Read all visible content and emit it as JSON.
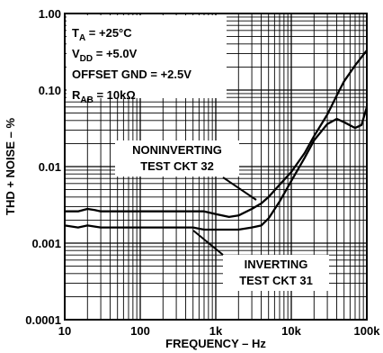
{
  "chart_data": {
    "type": "line",
    "title": "",
    "xlabel": "FREQUENCY – Hz",
    "ylabel": "THD + NOISE – %",
    "xscale": "log",
    "yscale": "log",
    "xlim": [
      10,
      100000
    ],
    "ylim": [
      0.0001,
      1
    ],
    "grid": true,
    "x_ticks": [
      {
        "value": 10,
        "label": "10"
      },
      {
        "value": 100,
        "label": "100"
      },
      {
        "value": 1000,
        "label": "1k"
      },
      {
        "value": 10000,
        "label": "10k"
      },
      {
        "value": 100000,
        "label": "100k"
      }
    ],
    "y_ticks": [
      {
        "value": 1,
        "label": "1.00"
      },
      {
        "value": 0.1,
        "label": "0.10"
      },
      {
        "value": 0.01,
        "label": "0.01"
      },
      {
        "value": 0.001,
        "label": "0.001"
      },
      {
        "value": 0.0001,
        "label": "0.0001"
      }
    ],
    "conditions": [
      {
        "name": "T",
        "sub": "A",
        "value": " = +25°C"
      },
      {
        "name": "V",
        "sub": "DD",
        "value": " = +5.0V"
      },
      {
        "name": "OFFSET GND = +2.5V",
        "sub": "",
        "value": ""
      },
      {
        "name": "R",
        "sub": "AB",
        "value": " = 10kΩ"
      }
    ],
    "series": [
      {
        "name": "NONINVERTING TEST CKT 32",
        "label_lines": [
          "NONINVERTING",
          "TEST CKT 32"
        ],
        "x": [
          10,
          15,
          20,
          25,
          30,
          40,
          50,
          70,
          100,
          150,
          200,
          300,
          500,
          700,
          1000,
          1500,
          2000,
          3000,
          4000,
          5000,
          7000,
          10000,
          15000,
          20000,
          30000,
          40000,
          50000,
          70000,
          100000
        ],
        "y": [
          0.0026,
          0.0026,
          0.0028,
          0.0027,
          0.0026,
          0.0026,
          0.0026,
          0.0026,
          0.0026,
          0.0026,
          0.0026,
          0.0026,
          0.0026,
          0.0026,
          0.0024,
          0.0022,
          0.0023,
          0.0028,
          0.0033,
          0.004,
          0.0058,
          0.0085,
          0.015,
          0.025,
          0.048,
          0.085,
          0.13,
          0.21,
          0.33
        ]
      },
      {
        "name": "INVERTING TEST CKT 31",
        "label_lines": [
          "INVERTING",
          "TEST CKT 31"
        ],
        "x": [
          10,
          15,
          20,
          30,
          40,
          50,
          70,
          100,
          150,
          200,
          300,
          500,
          700,
          1000,
          1500,
          2000,
          3000,
          4000,
          5000,
          7000,
          10000,
          15000,
          20000,
          30000,
          40000,
          50000,
          70000,
          85000,
          100000
        ],
        "y": [
          0.0017,
          0.0016,
          0.0017,
          0.0016,
          0.0016,
          0.0016,
          0.0016,
          0.0016,
          0.0016,
          0.0016,
          0.0016,
          0.0016,
          0.0015,
          0.0015,
          0.0015,
          0.0015,
          0.0016,
          0.0017,
          0.0021,
          0.0035,
          0.0065,
          0.013,
          0.022,
          0.036,
          0.042,
          0.038,
          0.032,
          0.035,
          0.06
        ]
      }
    ]
  }
}
